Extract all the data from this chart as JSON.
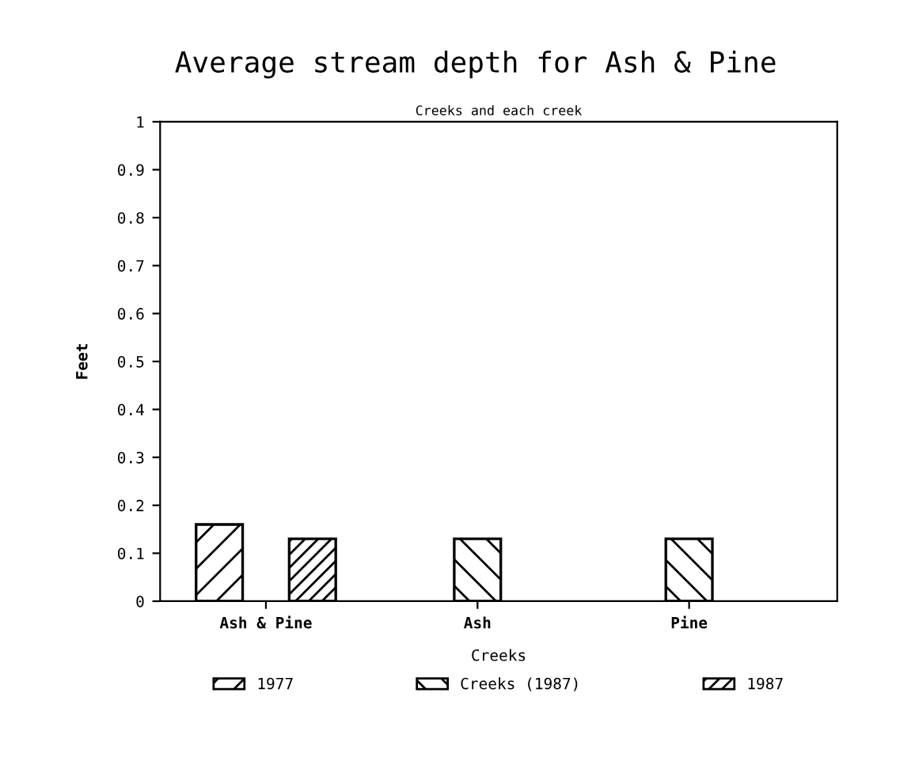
{
  "chart_data": {
    "type": "bar",
    "title": "Average stream depth for Ash & Pine",
    "subtitle": "Creeks and each creek",
    "xlabel": "Creeks",
    "ylabel": "Feet",
    "categories": [
      "Ash & Pine",
      "Ash",
      "Pine"
    ],
    "series": [
      {
        "name": "1977",
        "color": "#000000",
        "values": [
          0.16,
          null,
          null
        ]
      },
      {
        "name": "Creeks (1987)",
        "color": "#000000",
        "values": [
          null,
          0.13,
          0.13
        ]
      },
      {
        "name": "1987",
        "color": "#000000",
        "values": [
          0.13,
          null,
          null
        ]
      }
    ],
    "ylim": [
      0,
      1
    ],
    "yticks": [
      0,
      0.1,
      0.2,
      0.3,
      0.4,
      0.5,
      0.6,
      0.7,
      0.8,
      0.9,
      1
    ],
    "grid": false,
    "legend": "bottom"
  }
}
